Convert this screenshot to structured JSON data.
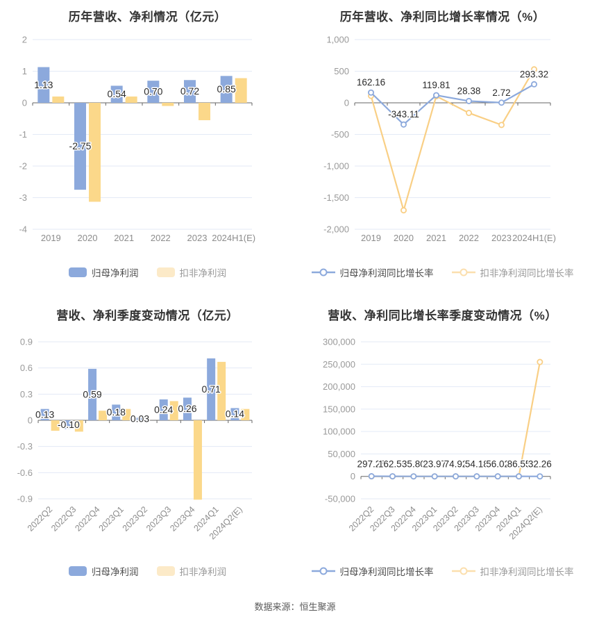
{
  "page": {
    "footer_text": "数据来源：恒生聚源",
    "background": "#ffffff"
  },
  "palette": {
    "blue": "#8CA9DC",
    "yellow_bar": "#FBD88A",
    "yellow_line": "#F9CF85",
    "legend_yellow_pale": "#FCEAC8",
    "grid_line": "#E3EAF6",
    "zero_axis": "#666666",
    "axis_tick_text": "#999999",
    "category_text": "#8C8C8C",
    "data_label_text": "#2B2B2B",
    "title_text": "#333333"
  },
  "chart_data": [
    {
      "type": "bar",
      "title": "历年营收、净利情况（亿元）",
      "categories": [
        "2019",
        "2020",
        "2021",
        "2022",
        "2023",
        "2024H1(E)"
      ],
      "ylim": [
        -4,
        2
      ],
      "yticks": [
        "2",
        "1",
        "0",
        "-1",
        "-2",
        "-3",
        "-4"
      ],
      "grid": "horizontal",
      "legend_position": "bottom",
      "legend_icon": "rect",
      "series": [
        {
          "name": "归母净利润",
          "color": "#8CA9DC",
          "legend_color": "#8CA9DC",
          "values": [
            1.13,
            -2.75,
            0.54,
            0.7,
            0.72,
            0.85
          ],
          "labels": [
            "1.13",
            "-2.75",
            "0.54",
            "0.70",
            "0.72",
            "0.85"
          ]
        },
        {
          "name": "扣非净利润",
          "color": "#FBD88A",
          "legend_color": "#FCEAC8",
          "values": [
            0.2,
            -3.13,
            0.2,
            -0.1,
            -0.55,
            0.78
          ]
        }
      ]
    },
    {
      "type": "line",
      "title": "历年营收、净利同比增长率情况（%）",
      "categories": [
        "2019",
        "2020",
        "2021",
        "2022",
        "2023",
        "2024H1(E)"
      ],
      "ylim": [
        -2000,
        1000
      ],
      "yticks": [
        "1,000",
        "500",
        "0",
        "-500",
        "-1,000",
        "-1,500",
        "-2,000"
      ],
      "grid": "horizontal",
      "legend_position": "bottom",
      "legend_icon": "line",
      "series": [
        {
          "name": "归母净利润同比增长率",
          "color": "#8CA9DC",
          "legend_color": "#8CA9DC",
          "values": [
            162.16,
            -343.11,
            119.81,
            28.38,
            2.72,
            293.32
          ],
          "labels": [
            "162.16",
            "-343.11",
            "119.81",
            "28.38",
            "2.72",
            "293.32"
          ]
        },
        {
          "name": "扣非净利润同比增长率",
          "color": "#F9CF85",
          "legend_color": "#FBDFAE",
          "values": [
            110,
            -1700,
            105,
            -160,
            -350,
            530
          ]
        }
      ]
    },
    {
      "type": "bar",
      "title": "营收、净利季度变动情况（亿元）",
      "categories": [
        "2022Q2",
        "2022Q3",
        "2022Q4",
        "2023Q1",
        "2023Q2",
        "2023Q3",
        "2023Q4",
        "2024Q1",
        "2024Q2(E)"
      ],
      "ylim": [
        -0.9,
        0.9
      ],
      "yticks": [
        "0.9",
        "0.6",
        "0.3",
        "0",
        "-0.3",
        "-0.6",
        "-0.9"
      ],
      "grid": "horizontal",
      "legend_position": "bottom",
      "legend_icon": "rect",
      "x_label_rotate": 45,
      "series": [
        {
          "name": "归母净利润",
          "color": "#8CA9DC",
          "legend_color": "#8CA9DC",
          "values": [
            0.13,
            -0.1,
            0.59,
            0.18,
            0.03,
            0.24,
            0.26,
            0.71,
            0.14
          ],
          "labels": [
            "0.13",
            "-0.10",
            "0.59",
            "0.18",
            "0.03",
            "0.24",
            "0.26",
            "0.71",
            "0.14"
          ]
        },
        {
          "name": "扣非净利润",
          "color": "#FBD88A",
          "legend_color": "#FCEAC8",
          "values": [
            -0.12,
            -0.13,
            0.11,
            0.13,
            0,
            0.22,
            -0.91,
            0.67,
            0.13
          ]
        }
      ]
    },
    {
      "type": "line",
      "title": "营收、净利同比增长率季度变动情况（%）",
      "categories": [
        "2022Q2",
        "2022Q3",
        "2022Q4",
        "2023Q1",
        "2023Q2",
        "2023Q3",
        "2023Q4",
        "2024Q1",
        "2024Q2(E)"
      ],
      "ylim": [
        -50000,
        300000
      ],
      "yticks": [
        "300,000",
        "250,000",
        "200,000",
        "150,000",
        "100,000",
        "50,000",
        "0",
        "-50,000"
      ],
      "grid": "horizontal",
      "legend_position": "bottom",
      "legend_icon": "line",
      "x_label_rotate": 45,
      "series": [
        {
          "name": "归母净利润同比增长率",
          "color": "#8CA9DC",
          "legend_color": "#8CA9DC",
          "values": [
            297.25,
            162.59,
            35.8,
            23.97,
            74.92,
            54.18,
            56.02,
            86.55,
            32.26
          ],
          "labels": [
            "297.25",
            "162.59",
            "35.80",
            "23.97",
            "74.92",
            "54.18",
            "56.02",
            "86.55",
            "32.26"
          ]
        },
        {
          "name": "扣非净利润同比增长率",
          "color": "#F9CF85",
          "legend_color": "#FBDFAE",
          "values": [
            0,
            0,
            0,
            0,
            0,
            0,
            0,
            0,
            255000
          ]
        }
      ]
    }
  ]
}
